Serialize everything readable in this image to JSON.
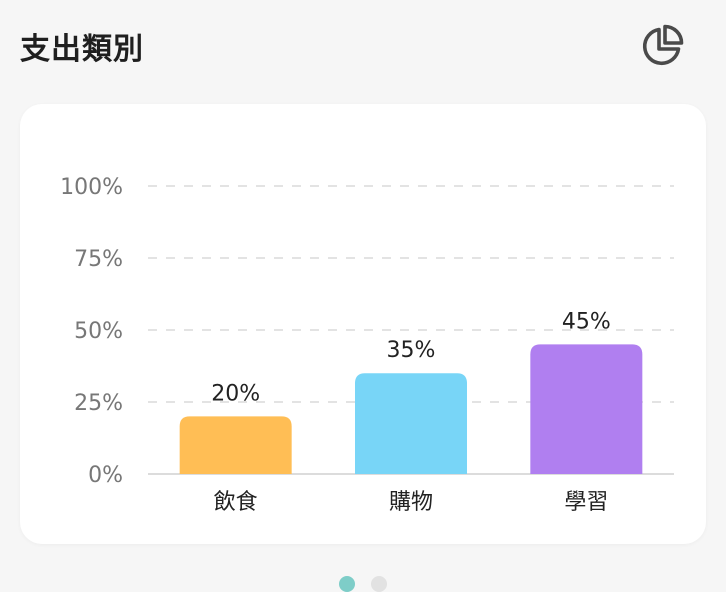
{
  "header": {
    "title": "支出類別",
    "toggle_icon": "pie-chart-icon"
  },
  "colors": {
    "grid": "#e3e3e3",
    "axis": "#dcdcdc",
    "tick_text": "#777777",
    "label_text": "#222222",
    "dot_active": "#7ecdc8",
    "dot_inactive": "#e2e2e2"
  },
  "chart_data": {
    "type": "bar",
    "title": "",
    "xlabel": "",
    "ylabel": "",
    "categories": [
      "飲食",
      "購物",
      "學習"
    ],
    "values": [
      20,
      35,
      45
    ],
    "value_labels": [
      "20%",
      "35%",
      "45%"
    ],
    "bar_colors": [
      "#ffbe55",
      "#78d5f7",
      "#b07ff0"
    ],
    "ylim": [
      0,
      100
    ],
    "yticks": [
      0,
      25,
      50,
      75,
      100
    ],
    "ytick_labels": [
      "0%",
      "25%",
      "50%",
      "75%",
      "100%"
    ],
    "grid": true,
    "legend": "none"
  },
  "pagination": {
    "count": 2,
    "active": 0
  }
}
